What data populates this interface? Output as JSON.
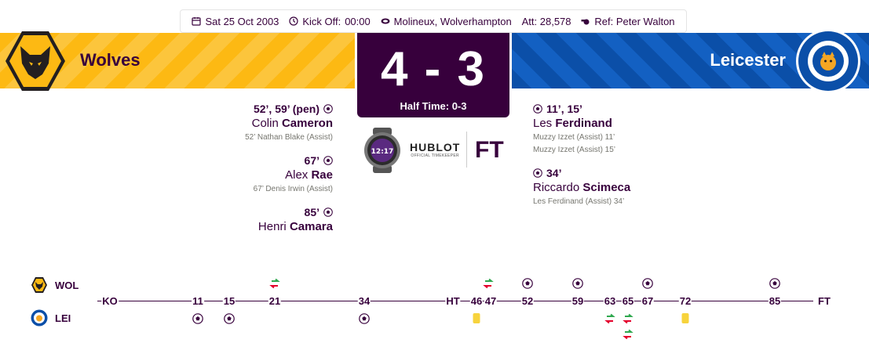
{
  "match_info": {
    "date": "Sat 25 Oct 2003",
    "kickoff_label": "Kick Off:",
    "kickoff_time": "00:00",
    "venue": "Molineux, Wolverhampton",
    "attendance": "Att: 28,578",
    "referee": "Ref: Peter Walton"
  },
  "home": {
    "name": "Wolves",
    "abbr": "WOL",
    "color": "#fdb913",
    "scorers": [
      {
        "time": "52’, 59’ (pen)",
        "first": "Colin",
        "last": "Cameron",
        "assists": [
          "52’ Nathan Blake (Assist)"
        ]
      },
      {
        "time": "67’",
        "first": "Alex",
        "last": "Rae",
        "assists": [
          "67’ Denis Irwin (Assist)"
        ]
      },
      {
        "time": "85’",
        "first": "Henri",
        "last": "Camara",
        "assists": []
      }
    ]
  },
  "away": {
    "name": "Leicester",
    "abbr": "LEI",
    "color": "#0b4fa8",
    "scorers": [
      {
        "time": "11’, 15’",
        "first": "Les",
        "last": "Ferdinand",
        "assists": [
          "Muzzy Izzet (Assist) 11’",
          "Muzzy Izzet (Assist) 15’"
        ]
      },
      {
        "time": "34’",
        "first": "Riccardo",
        "last": "Scimeca",
        "assists": [
          "Les Ferdinand (Assist) 34’"
        ]
      }
    ]
  },
  "score": {
    "display": "4 - 3",
    "half_time": "Half Time: 0-3",
    "status": "FT"
  },
  "timekeeper": {
    "watch_time": "12:17",
    "brand": "HUBLOT",
    "tagline": "OFFICIAL TIMEKEEPER"
  },
  "timeline": {
    "markers": [
      "KO",
      "11",
      "15",
      "21",
      "34",
      "HT",
      "46",
      "47",
      "52",
      "59",
      "63",
      "65",
      "67",
      "72",
      "85",
      "FT"
    ]
  },
  "colors": {
    "primary": "#37003c",
    "card_yellow": "#f7d33c",
    "sub_in": "#2fa84f",
    "sub_out": "#e4002b"
  }
}
